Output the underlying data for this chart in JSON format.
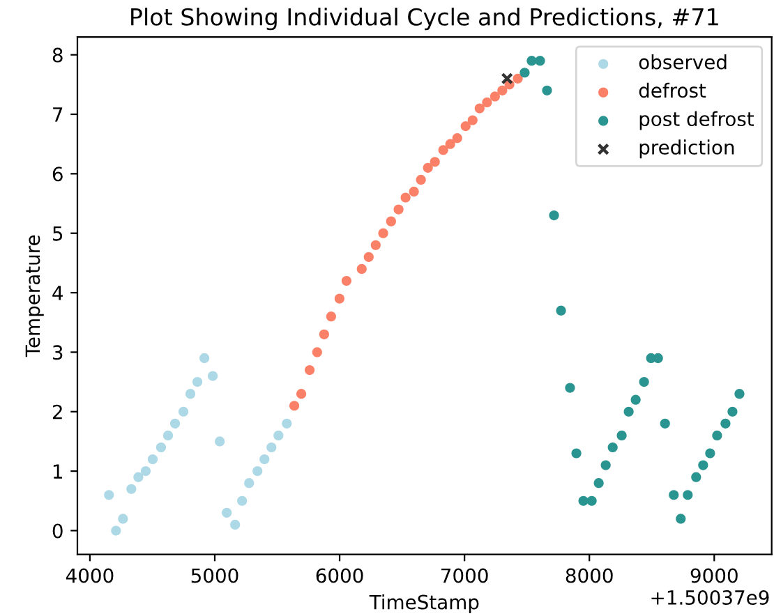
{
  "chart_data": {
    "type": "scatter",
    "title": "Plot Showing Individual Cycle and Predictions, #71",
    "xlabel": "TimeStamp",
    "ylabel": "Temperature",
    "annotations": [
      "+1.50037e9"
    ],
    "xlim": [
      3900,
      9460
    ],
    "ylim": [
      -0.4,
      8.3
    ],
    "xticks": [
      4000,
      5000,
      6000,
      7000,
      8000,
      9000
    ],
    "yticks": [
      0,
      1,
      2,
      3,
      4,
      5,
      6,
      7,
      8
    ],
    "grid": false,
    "legend": "top right",
    "series": [
      {
        "name": "observed",
        "color": "#add8e6",
        "marker": "circle",
        "x": [
          4153,
          4209,
          4265,
          4332,
          4388,
          4447,
          4503,
          4570,
          4626,
          4682,
          4749,
          4805,
          4861,
          4917,
          4984,
          5040,
          5096,
          5163,
          5219,
          5275,
          5342,
          5398,
          5454,
          5510,
          5577
        ],
        "values": [
          0.6,
          0.0,
          0.2,
          0.7,
          0.9,
          1.0,
          1.2,
          1.4,
          1.6,
          1.8,
          2.0,
          2.3,
          2.5,
          2.9,
          2.6,
          1.5,
          0.3,
          0.1,
          0.5,
          0.8,
          1.0,
          1.2,
          1.4,
          1.6,
          1.8
        ]
      },
      {
        "name": "defrost",
        "color": "#fa8068",
        "marker": "circle",
        "x": [
          5637,
          5693,
          5760,
          5820,
          5876,
          5932,
          5999,
          6055,
          6177,
          6233,
          6289,
          6349,
          6412,
          6472,
          6528,
          6595,
          6651,
          6707,
          6763,
          6830,
          6886,
          6942,
          7009,
          7065,
          7121,
          7180,
          7244,
          7303,
          7360,
          7427
        ],
        "values": [
          2.1,
          2.3,
          2.7,
          3.0,
          3.3,
          3.6,
          3.9,
          4.2,
          4.4,
          4.6,
          4.8,
          5.0,
          5.2,
          5.4,
          5.6,
          5.7,
          5.9,
          6.1,
          6.2,
          6.4,
          6.5,
          6.6,
          6.8,
          6.9,
          7.1,
          7.2,
          7.3,
          7.4,
          7.5,
          7.6
        ]
      },
      {
        "name": "post defrost",
        "color": "#2a9490",
        "marker": "circle",
        "x": [
          7482,
          7538,
          7605,
          7661,
          7717,
          7773,
          7845,
          7896,
          7952,
          8019,
          8075,
          8131,
          8187,
          8259,
          8315,
          8371,
          8438,
          8494,
          8550,
          8606,
          8676,
          8732,
          8788,
          8855,
          8911,
          8967,
          9023,
          9090,
          9146,
          9202
        ],
        "values": [
          7.7,
          7.9,
          7.9,
          7.4,
          5.3,
          3.7,
          2.4,
          1.3,
          0.5,
          0.5,
          0.8,
          1.1,
          1.4,
          1.6,
          2.0,
          2.2,
          2.5,
          2.9,
          2.9,
          1.8,
          0.6,
          0.2,
          0.6,
          0.9,
          1.1,
          1.3,
          1.6,
          1.8,
          2.0,
          2.3
        ]
      },
      {
        "name": "prediction",
        "color": "#333333",
        "marker": "cross",
        "x": [
          7341
        ],
        "values": [
          7.6
        ]
      }
    ]
  }
}
